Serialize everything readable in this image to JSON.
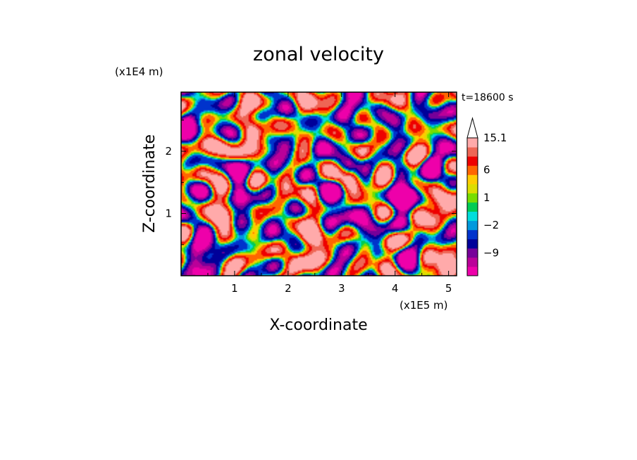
{
  "chart_data": {
    "type": "heatmap",
    "title": "zonal velocity",
    "xlabel": "X-coordinate",
    "ylabel": "Z-coordinate",
    "x_unit": "(x1E5 m)",
    "y_unit": "(x1E4 m)",
    "time_label": "t=18600 s",
    "xlim": [
      0,
      5.15
    ],
    "ylim": [
      0,
      2.95
    ],
    "x_ticks": [
      1,
      2,
      3,
      4,
      5
    ],
    "x_tick_labels": [
      "1",
      "2",
      "3",
      "4",
      "5"
    ],
    "y_ticks": [
      1,
      2
    ],
    "y_tick_labels": [
      "1",
      "2"
    ],
    "colorbar": {
      "levels": [
        -15,
        -12,
        -9,
        -6,
        -3,
        -2,
        -1,
        0,
        1,
        2,
        3,
        6,
        9,
        12,
        15.1
      ],
      "labels": [
        {
          "value": 15.1,
          "text": "15.1"
        },
        {
          "value": 6,
          "text": "6"
        },
        {
          "value": 1,
          "text": "1"
        },
        {
          "value": -2,
          "text": "−2"
        },
        {
          "value": -9,
          "text": "−9"
        }
      ],
      "colors_bottom_to_top": [
        "#ee00aa",
        "#bb0099",
        "#770099",
        "#000099",
        "#0033cc",
        "#0099dd",
        "#00dddd",
        "#00cc55",
        "#77dd00",
        "#dddd00",
        "#ffcc00",
        "#ff6600",
        "#ee0000",
        "#ee6655",
        "#ffaaaa"
      ],
      "extend_top": true
    }
  }
}
